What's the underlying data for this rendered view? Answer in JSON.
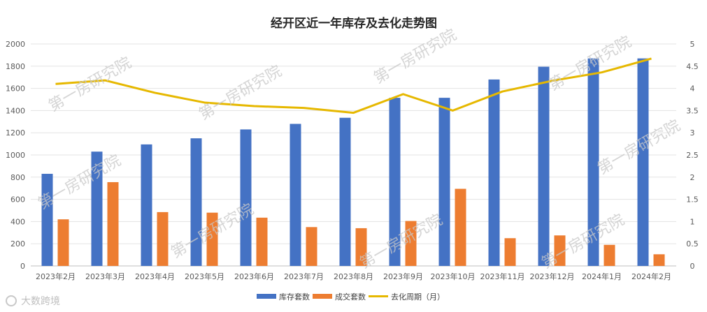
{
  "chart_data": {
    "type": "bar",
    "title": "经开区近一年库存及去化走势图",
    "categories": [
      "2023年2月",
      "2023年3月",
      "2023年4月",
      "2023年5月",
      "2023年6月",
      "2023年7月",
      "2023年8月",
      "2023年9月",
      "2023年10月",
      "2023年11月",
      "2023年12月",
      "2024年1月",
      "2024年2月"
    ],
    "series": [
      {
        "name": "库存套数",
        "type": "bar",
        "axis": "left",
        "color": "#4472C4",
        "values": [
          830,
          1030,
          1095,
          1150,
          1230,
          1280,
          1335,
          1515,
          1515,
          1680,
          1795,
          1870,
          1870
        ]
      },
      {
        "name": "成交套数",
        "type": "bar",
        "axis": "left",
        "color": "#ED7D31",
        "values": [
          420,
          755,
          485,
          480,
          435,
          350,
          340,
          405,
          695,
          250,
          275,
          190,
          105
        ]
      },
      {
        "name": "去化周期（月）",
        "type": "line",
        "axis": "right",
        "color": "#E6B800",
        "values": [
          4.1,
          4.18,
          3.9,
          3.68,
          3.6,
          3.56,
          3.45,
          3.87,
          3.5,
          3.93,
          4.17,
          4.36,
          4.67
        ]
      }
    ],
    "yleft": {
      "lim": [
        0,
        2000
      ],
      "ticks": [
        "0",
        "200",
        "400",
        "600",
        "800",
        "1000",
        "1200",
        "1400",
        "1600",
        "1800",
        "2000"
      ]
    },
    "yright": {
      "lim": [
        0,
        5
      ],
      "ticks": [
        "0",
        "0.5",
        "1",
        "1.5",
        "2",
        "2.5",
        "3",
        "3.5",
        "4",
        "4.5",
        "5"
      ]
    },
    "grid": true,
    "legend_position": "bottom"
  },
  "watermark": "第一房研究院",
  "corner_logo": "大数跨境"
}
